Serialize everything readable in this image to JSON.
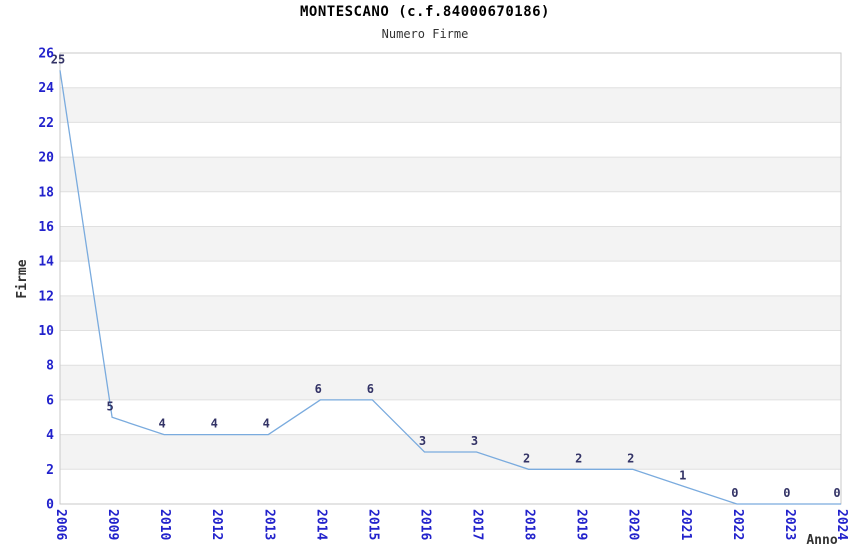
{
  "chart_data": {
    "type": "line",
    "title": "MONTESCANO (c.f.84000670186)",
    "subtitle": "Numero Firme",
    "xlabel": "Anno",
    "ylabel": "Firme",
    "categories": [
      "2006",
      "2009",
      "2010",
      "2012",
      "2013",
      "2014",
      "2015",
      "2016",
      "2017",
      "2018",
      "2019",
      "2020",
      "2021",
      "2022",
      "2023",
      "2024"
    ],
    "values": [
      25,
      5,
      4,
      4,
      4,
      6,
      6,
      3,
      3,
      2,
      2,
      2,
      1,
      0,
      0,
      0
    ],
    "ylim": [
      0,
      26
    ],
    "ytick_step": 2,
    "yticks": [
      0,
      2,
      4,
      6,
      8,
      10,
      12,
      14,
      16,
      18,
      20,
      22,
      24,
      26
    ],
    "grid": "horizontal-only",
    "bands": "alternating gray every 2 units (2-4, 6-8, 10-12, 14-16, 18-20, 22-24)",
    "legend": "none",
    "colors": {
      "line": "#7aabde",
      "tick_label": "#2222cc",
      "data_label": "#333366",
      "band_fill": "#f3f3f3",
      "gridline": "#e0e0e0",
      "plot_border": "#c9c9c9",
      "axis_title": "#333333",
      "title": "#000000",
      "background": "#ffffff"
    }
  }
}
